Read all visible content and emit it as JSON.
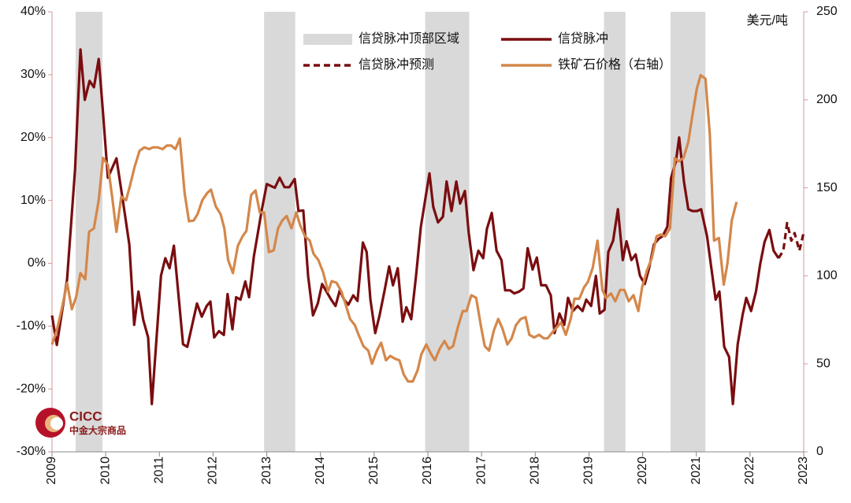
{
  "chart_data": {
    "type": "line",
    "ylabel2": "美元/吨",
    "logo": {
      "name": "CICC",
      "subtitle": "中金大宗商品"
    },
    "xlim": [
      2009,
      2023
    ],
    "xticks": [
      2009,
      2010,
      2011,
      2012,
      2013,
      2014,
      2015,
      2016,
      2017,
      2018,
      2019,
      2020,
      2021,
      2022,
      2023
    ],
    "ylim": [
      -30,
      40
    ],
    "yticks": [
      {
        "value": -30,
        "label": "-30%"
      },
      {
        "value": -20,
        "label": "-20%"
      },
      {
        "value": -10,
        "label": "-10%"
      },
      {
        "value": 0,
        "label": "0%"
      },
      {
        "value": 10,
        "label": "10%"
      },
      {
        "value": 20,
        "label": "20%"
      },
      {
        "value": 30,
        "label": "30%"
      },
      {
        "value": 40,
        "label": "40%"
      }
    ],
    "y2lim": [
      0,
      250
    ],
    "y2ticks": [
      0,
      50,
      100,
      150,
      200,
      250
    ],
    "shaded": {
      "name": "信贷脉冲顶部区域",
      "color": "#d9d9d9",
      "ranges": [
        [
          2009.44,
          2009.94
        ],
        [
          2012.95,
          2013.53
        ],
        [
          2015.95,
          2016.77
        ],
        [
          2019.28,
          2019.68
        ],
        [
          2020.52,
          2021.17
        ]
      ]
    },
    "series": [
      {
        "name": "信贷脉冲",
        "color": "#7a0d10",
        "dash": false,
        "x": [
          2009.0,
          2009.09,
          2009.28,
          2009.43,
          2009.53,
          2009.61,
          2009.7,
          2009.78,
          2009.87,
          2009.95,
          2010.04,
          2010.2,
          2010.32,
          2010.44,
          2010.53,
          2010.61,
          2010.7,
          2010.79,
          2010.86,
          2011.03,
          2011.11,
          2011.19,
          2011.27,
          2011.44,
          2011.52,
          2011.7,
          2011.79,
          2011.88,
          2011.95,
          2012.02,
          2012.11,
          2012.2,
          2012.27,
          2012.36,
          2012.43,
          2012.51,
          2012.6,
          2012.67,
          2012.76,
          2012.91,
          2013.0,
          2013.15,
          2013.24,
          2013.33,
          2013.42,
          2013.52,
          2013.59,
          2013.68,
          2013.77,
          2013.86,
          2013.95,
          2014.03,
          2014.2,
          2014.28,
          2014.36,
          2014.44,
          2014.52,
          2014.61,
          2014.69,
          2014.79,
          2014.86,
          2014.93,
          2015.02,
          2015.1,
          2015.19,
          2015.28,
          2015.35,
          2015.44,
          2015.53,
          2015.6,
          2015.69,
          2015.78,
          2015.87,
          2016.03,
          2016.1,
          2016.19,
          2016.28,
          2016.35,
          2016.44,
          2016.53,
          2016.6,
          2016.69,
          2016.76,
          2016.85,
          2016.94,
          2017.03,
          2017.1,
          2017.19,
          2017.28,
          2017.37,
          2017.44,
          2017.53,
          2017.61,
          2017.7,
          2017.78,
          2017.86,
          2017.95,
          2018.03,
          2018.11,
          2018.2,
          2018.29,
          2018.36,
          2018.45,
          2018.54,
          2018.61,
          2018.7,
          2018.79,
          2018.88,
          2018.95,
          2019.04,
          2019.13,
          2019.2,
          2019.29,
          2019.36,
          2019.45,
          2019.54,
          2019.63,
          2019.7,
          2019.79,
          2019.87,
          2019.95,
          2020.04,
          2020.12,
          2020.21,
          2020.3,
          2020.37,
          2020.46,
          2020.53,
          2020.62,
          2020.68,
          2020.77,
          2020.85,
          2020.93,
          2021.01,
          2021.09,
          2021.2,
          2021.28,
          2021.36,
          2021.43,
          2021.52,
          2021.61,
          2021.68,
          2021.77,
          2021.86,
          2021.93,
          2022.02,
          2022.11,
          2022.19,
          2022.27,
          2022.36,
          2022.44,
          2022.53
        ],
        "values": [
          -8.3,
          -13,
          -2.6,
          15,
          34,
          26,
          29,
          28,
          32.5,
          24,
          13.6,
          16.7,
          10,
          3,
          -9.8,
          -4.5,
          -9,
          -11.8,
          -22.4,
          -2,
          0.8,
          -0.8,
          2.8,
          -12.9,
          -13.3,
          -6.4,
          -8.5,
          -6.8,
          -6.1,
          -11.8,
          -10.8,
          -11.4,
          -4.9,
          -10.5,
          -5.4,
          -5.8,
          -2.9,
          -5.4,
          1.1,
          8.6,
          12.6,
          12,
          13.6,
          12.1,
          12.1,
          13.4,
          8.3,
          8.4,
          -2,
          -8.3,
          -6.4,
          -3.3,
          -5.8,
          -6.8,
          -4.3,
          -5.8,
          -6.6,
          -5.1,
          -6,
          3.3,
          1.8,
          -5.8,
          -11.1,
          -8.3,
          -4.5,
          -0.5,
          -3.5,
          -0.8,
          -9.3,
          -7,
          -8.9,
          -2,
          5.8,
          14.3,
          9,
          6.5,
          7.4,
          13,
          8.3,
          13,
          9.5,
          11.5,
          4.9,
          -1.1,
          2,
          0.8,
          5.5,
          8,
          2,
          0.5,
          -4.3,
          -4.3,
          -4.8,
          -4.5,
          -4,
          2.4,
          -1,
          0.9,
          -3.5,
          -3.5,
          -5.1,
          -11.1,
          -8,
          -9.8,
          -5.5,
          -7.6,
          -6.8,
          -7.6,
          -5.8,
          -6.8,
          -2,
          -8,
          -7.4,
          1.8,
          3.6,
          8.6,
          0.5,
          3.5,
          0.5,
          1.4,
          -2,
          -3.3,
          -0.8,
          3,
          3.9,
          4.3,
          5.8,
          13.6,
          16.2,
          20,
          13,
          8.6,
          8.3,
          8.3,
          8.6,
          4.3,
          -0.8,
          -5.8,
          -4.5,
          -13.3,
          -14.9,
          -22.4,
          -12.9,
          -8.3,
          -5.5,
          -7.6,
          -4.5,
          -0.1,
          3.4,
          5.3,
          2,
          0.8
        ]
      },
      {
        "name": "信贷脉冲预测",
        "color": "#7a0d10",
        "dash": true,
        "x": [
          2022.53,
          2022.62,
          2022.69,
          2022.77,
          2022.83,
          2022.92,
          2023.0
        ],
        "values": [
          0.8,
          2,
          6.4,
          3.6,
          4.8,
          2,
          4.9
        ]
      },
      {
        "name": "铁矿石价格（右轴）",
        "color": "#d4874a",
        "dash": false,
        "axis": "y2",
        "x": [
          2009.0,
          2009.09,
          2009.18,
          2009.28,
          2009.37,
          2009.45,
          2009.53,
          2009.62,
          2009.69,
          2009.78,
          2009.87,
          2009.95,
          2010.04,
          2010.12,
          2010.2,
          2010.29,
          2010.38,
          2010.45,
          2010.54,
          2010.63,
          2010.72,
          2010.81,
          2010.88,
          2010.97,
          2011.06,
          2011.14,
          2011.22,
          2011.3,
          2011.38,
          2011.47,
          2011.55,
          2011.64,
          2011.71,
          2011.8,
          2011.89,
          2011.96,
          2012.05,
          2012.14,
          2012.21,
          2012.28,
          2012.37,
          2012.46,
          2012.55,
          2012.62,
          2012.71,
          2012.79,
          2012.87,
          2012.95,
          2013.04,
          2013.13,
          2013.21,
          2013.29,
          2013.37,
          2013.46,
          2013.55,
          2013.62,
          2013.71,
          2013.8,
          2013.87,
          2013.96,
          2014.05,
          2014.14,
          2014.21,
          2014.3,
          2014.39,
          2014.46,
          2014.55,
          2014.64,
          2014.71,
          2014.8,
          2014.89,
          2014.96,
          2015.05,
          2015.13,
          2015.22,
          2015.3,
          2015.38,
          2015.47,
          2015.55,
          2015.63,
          2015.72,
          2015.81,
          2015.88,
          2015.97,
          2016.06,
          2016.13,
          2016.22,
          2016.31,
          2016.39,
          2016.47,
          2016.56,
          2016.65,
          2016.72,
          2016.81,
          2016.9,
          2016.99,
          2017.06,
          2017.14,
          2017.23,
          2017.31,
          2017.39,
          2017.48,
          2017.56,
          2017.64,
          2017.73,
          2017.82,
          2017.89,
          2017.98,
          2018.07,
          2018.16,
          2018.23,
          2018.32,
          2018.41,
          2018.48,
          2018.57,
          2018.66,
          2018.73,
          2018.82,
          2018.91,
          2018.98,
          2019.07,
          2019.16,
          2019.25,
          2019.32,
          2019.41,
          2019.49,
          2019.58,
          2019.66,
          2019.74,
          2019.83,
          2019.92,
          2019.99,
          2020.08,
          2020.17,
          2020.26,
          2020.33,
          2020.42,
          2020.51,
          2020.6,
          2020.67,
          2020.76,
          2020.85,
          2020.92,
          2021.01,
          2021.08,
          2021.17,
          2021.25,
          2021.33,
          2021.42,
          2021.51,
          2021.58,
          2021.66,
          2021.75
        ],
        "values": [
          61,
          69,
          81,
          96,
          81,
          88,
          101.5,
          98,
          125,
          127,
          143,
          167,
          163,
          145,
          125,
          145,
          143,
          151,
          162,
          171,
          173,
          172,
          173,
          173,
          172,
          174,
          174,
          172,
          178,
          147,
          131,
          131.5,
          135,
          143,
          147,
          149,
          139.5,
          135,
          127,
          109,
          101.5,
          117,
          122.5,
          125.5,
          146,
          148.5,
          136,
          136,
          113.5,
          114.5,
          127,
          131.5,
          134,
          127,
          136,
          129,
          122.5,
          120,
          112.5,
          109,
          102,
          91,
          97,
          96,
          91,
          84.5,
          75.5,
          72,
          66.5,
          60,
          57.5,
          50,
          57.5,
          62,
          52,
          54.5,
          53,
          52,
          44,
          40,
          40,
          46.5,
          55.5,
          61,
          55.5,
          52,
          58.5,
          63,
          58.5,
          60,
          71,
          80,
          80,
          89,
          87.5,
          71,
          60,
          57.5,
          69,
          75.5,
          70,
          61,
          64.5,
          72,
          75.5,
          76.5,
          66.5,
          65,
          66.5,
          64.5,
          64.5,
          68,
          71,
          73.5,
          66.5,
          75.5,
          87,
          87,
          93.5,
          96.5,
          104.5,
          120,
          92,
          87.5,
          90,
          85.5,
          92,
          92,
          85.5,
          89,
          80,
          93.5,
          103,
          110,
          122.5,
          123.5,
          122.5,
          127,
          167,
          165,
          167,
          176,
          190,
          206.5,
          214,
          212,
          180.5,
          120,
          121.5,
          95,
          107,
          131.5,
          142
        ]
      }
    ]
  }
}
